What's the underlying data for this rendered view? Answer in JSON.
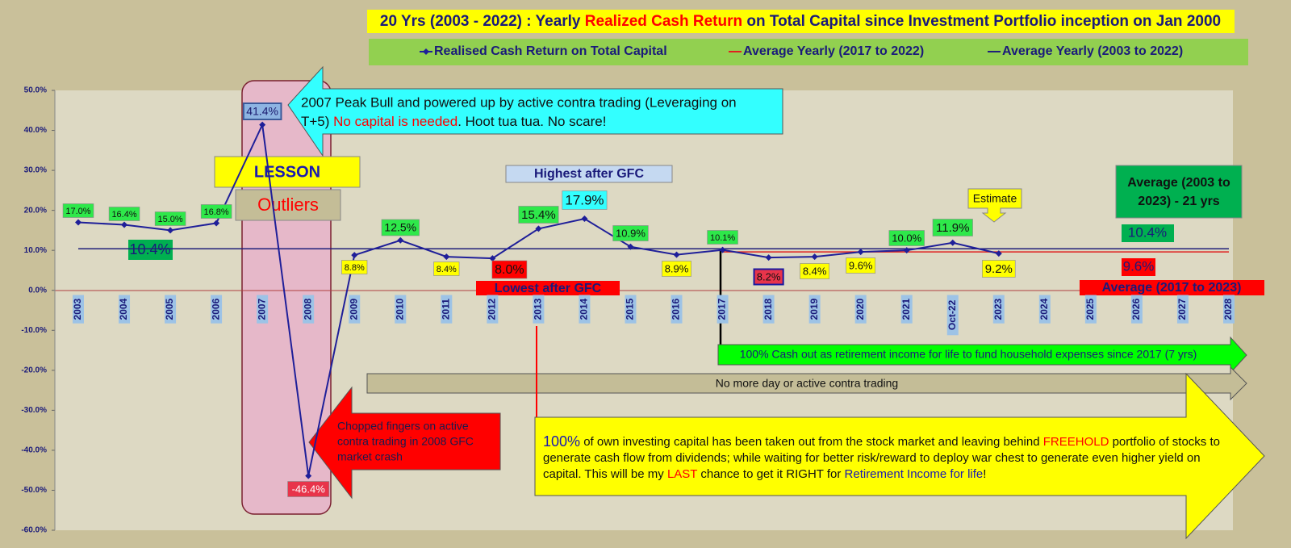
{
  "chart_data": {
    "type": "line",
    "title": [
      "20 Yrs (2003 - 2022) : Yearly ",
      "Realized Cash Return",
      " on Total Capital since Investment Portfolio inception on Jan 2000"
    ],
    "categories": [
      "2003",
      "2004",
      "2005",
      "2006",
      "2007",
      "2008",
      "2009",
      "2010",
      "2011",
      "2012",
      "2013",
      "2014",
      "2015",
      "2016",
      "2017",
      "2018",
      "2019",
      "2020",
      "2021",
      "Oct-22",
      "2023",
      "2024",
      "2025",
      "2026",
      "2027",
      "2028"
    ],
    "series": [
      {
        "name": "Realised Cash Return on Total Capital",
        "color": "#1f1f99",
        "values": [
          17.0,
          16.4,
          15.0,
          16.8,
          41.4,
          -46.4,
          8.8,
          12.5,
          8.4,
          8.0,
          15.4,
          17.9,
          10.9,
          8.9,
          10.1,
          8.2,
          8.4,
          9.6,
          10.0,
          11.9,
          9.2,
          null,
          null,
          null,
          null,
          null
        ],
        "value_labels": [
          "17.0%",
          "16.4%",
          "15.0%",
          "16.8%",
          "41.4%",
          "-46.4%",
          "8.8%",
          "12.5%",
          "8.4%",
          "8.0%",
          "15.4%",
          "17.9%",
          "10.9%",
          "8.9%",
          "10.1%",
          "8.2%",
          "8.4%",
          "9.6%",
          "10.0%",
          "11.9%",
          "9.2%",
          null,
          null,
          null,
          null,
          null
        ]
      },
      {
        "name": "Average Yearly (2017 to 2022)",
        "color": "#e02020",
        "values": [
          null,
          null,
          null,
          null,
          null,
          null,
          null,
          null,
          null,
          null,
          null,
          null,
          null,
          null,
          9.6,
          9.6,
          9.6,
          9.6,
          9.6,
          9.6,
          9.6,
          9.6,
          9.6,
          9.6,
          9.6,
          9.6
        ]
      },
      {
        "name": "Average Yearly (2003 to 2022)",
        "color": "#1f1f7a",
        "values": [
          10.4,
          10.4,
          10.4,
          10.4,
          10.4,
          10.4,
          10.4,
          10.4,
          10.4,
          10.4,
          10.4,
          10.4,
          10.4,
          10.4,
          10.4,
          10.4,
          10.4,
          10.4,
          10.4,
          10.4,
          10.4,
          10.4,
          10.4,
          10.4,
          10.4,
          10.4
        ]
      }
    ],
    "ylim": [
      -60,
      50
    ],
    "yticks": [
      {
        "value": -60,
        "label": "-60.0%"
      },
      {
        "value": -50,
        "label": "-50.0%"
      },
      {
        "value": -40,
        "label": "-40.0%"
      },
      {
        "value": -30,
        "label": "-30.0%"
      },
      {
        "value": -20,
        "label": "-20.0%"
      },
      {
        "value": -10,
        "label": "-10.0%"
      },
      {
        "value": 0,
        "label": "0.0%"
      },
      {
        "value": 10,
        "label": "10.0%"
      },
      {
        "value": 20,
        "label": "20.0%"
      },
      {
        "value": 30,
        "label": "30.0%"
      },
      {
        "value": 40,
        "label": "40.0%"
      },
      {
        "value": 50,
        "label": "50.0%"
      }
    ],
    "annotations": {
      "peak": [
        "2007 Peak Bull and powered up by active contra trading (Leveraging on",
        "T+5) ",
        "No capital is needed",
        ". Hoot tua tua. No scare!"
      ],
      "lesson": "LESSON",
      "outliers": "Outliers",
      "highest": "Highest after GFC",
      "lowest": "Lowest after GFC",
      "estimate": "Estimate",
      "avg_box": [
        "Average (2003 to",
        "2023) - 21 yrs"
      ],
      "avg_all_left": "10.4%",
      "avg_all_right": "10.4%",
      "avg_recent": "9.6%",
      "avg_recent_name": "Average (2017 to 2023)",
      "cash_out": "100% Cash out as retirement income for life to fund household expenses since 2017 (7 yrs)",
      "no_trading": "No more day or active contra trading",
      "chopped": [
        "Chopped fingers on active",
        "contra trading in 2008 GFC",
        "market crash"
      ],
      "freehold": [
        "100%",
        " of own investing capital has been taken out from the stock market and leaving behind ",
        "FREEHOLD",
        " portfolio of stocks to",
        "generate cash flow from dividends; while waiting for better risk/reward to deploy war chest to generate even higher yield on",
        "capital. This will be my ",
        "LAST",
        " chance to get it RIGHT for ",
        "Retirement Income for life",
        "!"
      ]
    }
  }
}
